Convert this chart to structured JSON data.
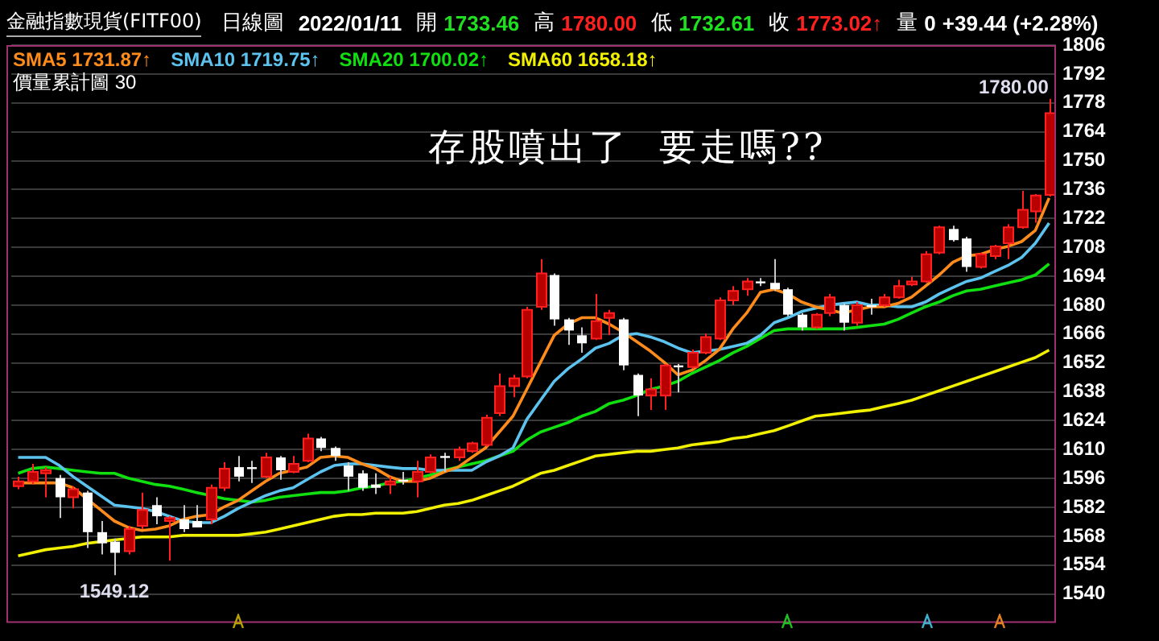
{
  "chart_data": {
    "type": "candlestick",
    "title": "金融指數現貨(FITF00)",
    "subtitle": "日線圖",
    "categories": [
      null,
      null,
      null,
      null,
      null,
      null,
      null,
      null,
      null,
      null,
      null,
      null,
      null,
      null,
      null,
      null,
      null,
      null,
      null,
      null,
      null,
      null,
      null,
      null,
      null,
      null,
      null,
      null,
      null,
      null,
      null,
      null,
      null,
      null,
      null,
      null,
      null,
      null,
      null,
      null,
      null,
      null,
      null,
      null,
      null,
      null,
      null,
      null,
      null,
      null,
      null,
      null,
      null,
      null,
      null,
      null,
      null,
      null,
      null,
      null,
      null,
      null,
      null,
      null,
      null,
      null,
      null,
      null,
      null,
      null,
      null,
      null,
      null,
      null,
      null,
      null
    ],
    "ohlc": [
      [
        1592.3,
        1596.9,
        1590.8,
        1594.6
      ],
      [
        1594.6,
        1603.1,
        1593.1,
        1599.2
      ],
      [
        1598.5,
        1601.5,
        1586.9,
        1600.0
      ],
      [
        1596.2,
        1597.7,
        1576.9,
        1586.9
      ],
      [
        1586.9,
        1592.3,
        1581.5,
        1590.8
      ],
      [
        1589.2,
        1590.0,
        1562.3,
        1570.0
      ],
      [
        1570.0,
        1575.4,
        1559.2,
        1564.6
      ],
      [
        1565.4,
        1566.9,
        1549.12,
        1560.0
      ],
      [
        1560.8,
        1573.1,
        1559.2,
        1571.5
      ],
      [
        1573.1,
        1589.2,
        1571.5,
        1580.8
      ],
      [
        1583.1,
        1586.9,
        1573.8,
        1577.7
      ],
      [
        1575.4,
        1577.7,
        1556.2,
        1576.9
      ],
      [
        1576.2,
        1583.1,
        1570.0,
        1571.5
      ],
      [
        1575.4,
        1583.1,
        1572.3,
        1572.3
      ],
      [
        1576.2,
        1593.1,
        1573.8,
        1591.5
      ],
      [
        1591.5,
        1603.9,
        1590.0,
        1600.8
      ],
      [
        1601.5,
        1606.9,
        1594.6,
        1596.9
      ],
      [
        1601.5,
        1604.6,
        1593.8,
        1601.0
      ],
      [
        1596.9,
        1608.5,
        1596.2,
        1606.2
      ],
      [
        1606.2,
        1606.9,
        1595.4,
        1600.0
      ],
      [
        1599.2,
        1606.9,
        1598.5,
        1603.1
      ],
      [
        1604.6,
        1617.7,
        1603.9,
        1615.4
      ],
      [
        1615.4,
        1616.2,
        1609.2,
        1610.8
      ],
      [
        1610.8,
        1611.5,
        1604.6,
        1606.9
      ],
      [
        1602.3,
        1603.9,
        1590.0,
        1596.9
      ],
      [
        1598.5,
        1600.0,
        1590.0,
        1591.5
      ],
      [
        1593.1,
        1598.5,
        1588.5,
        1591.5
      ],
      [
        1593.1,
        1596.9,
        1588.5,
        1594.6
      ],
      [
        1595.4,
        1599.2,
        1593.1,
        1594.6
      ],
      [
        1594.6,
        1604.6,
        1586.9,
        1599.2
      ],
      [
        1599.2,
        1607.7,
        1598.5,
        1606.2
      ],
      [
        1606.9,
        1608.5,
        1599.2,
        1606.2
      ],
      [
        1606.2,
        1611.5,
        1604.6,
        1610.0
      ],
      [
        1609.2,
        1613.8,
        1608.5,
        1613.1
      ],
      [
        1612.3,
        1626.9,
        1611.5,
        1625.4
      ],
      [
        1627.7,
        1646.9,
        1626.2,
        1640.8
      ],
      [
        1640.8,
        1646.2,
        1635.4,
        1644.6
      ],
      [
        1645.4,
        1679.2,
        1644.6,
        1677.7
      ],
      [
        1679.2,
        1702.3,
        1677.7,
        1695.4
      ],
      [
        1694.6,
        1695.4,
        1670.0,
        1673.1
      ],
      [
        1673.1,
        1673.8,
        1660.8,
        1667.7
      ],
      [
        1665.4,
        1669.2,
        1656.9,
        1661.5
      ],
      [
        1663.8,
        1685.4,
        1663.1,
        1672.3
      ],
      [
        1673.8,
        1677.7,
        1665.4,
        1676.2
      ],
      [
        1673.1,
        1673.8,
        1648.5,
        1650.8
      ],
      [
        1646.2,
        1646.9,
        1626.2,
        1636.2
      ],
      [
        1636.2,
        1644.6,
        1629.2,
        1639.2
      ],
      [
        1636.2,
        1651.5,
        1629.2,
        1650.8
      ],
      [
        1650.8,
        1651.5,
        1637.7,
        1650.0
      ],
      [
        1650.0,
        1658.5,
        1649.2,
        1656.9
      ],
      [
        1656.9,
        1666.2,
        1656.2,
        1664.6
      ],
      [
        1663.8,
        1683.8,
        1663.1,
        1682.3
      ],
      [
        1682.3,
        1689.2,
        1680.0,
        1686.9
      ],
      [
        1687.7,
        1693.1,
        1684.6,
        1691.5
      ],
      [
        1691.5,
        1693.1,
        1689.2,
        1690.8
      ],
      [
        1690.8,
        1702.3,
        1686.9,
        1687.7
      ],
      [
        1687.7,
        1688.5,
        1674.6,
        1675.4
      ],
      [
        1675.4,
        1676.2,
        1667.7,
        1669.2
      ],
      [
        1669.2,
        1676.2,
        1668.5,
        1675.4
      ],
      [
        1676.2,
        1685.4,
        1674.6,
        1683.8
      ],
      [
        1680.0,
        1680.8,
        1667.7,
        1671.5
      ],
      [
        1671.5,
        1681.5,
        1670.0,
        1680.0
      ],
      [
        1680.0,
        1683.1,
        1675.4,
        1679.2
      ],
      [
        1680.0,
        1685.4,
        1679.2,
        1683.8
      ],
      [
        1683.8,
        1692.3,
        1683.1,
        1689.2
      ],
      [
        1690.0,
        1693.8,
        1689.2,
        1691.5
      ],
      [
        1691.5,
        1706.2,
        1690.8,
        1704.6
      ],
      [
        1705.4,
        1718.5,
        1704.6,
        1717.7
      ],
      [
        1716.9,
        1718.5,
        1710.8,
        1711.5
      ],
      [
        1712.3,
        1713.1,
        1696.2,
        1698.5
      ],
      [
        1698.5,
        1705.4,
        1697.7,
        1704.6
      ],
      [
        1703.8,
        1709.2,
        1702.3,
        1708.5
      ],
      [
        1710.0,
        1719.2,
        1702.3,
        1717.7
      ],
      [
        1717.7,
        1735.4,
        1717.0,
        1726.2
      ],
      [
        1725.4,
        1733.8,
        1720.0,
        1733.1
      ],
      [
        1733.46,
        1780.0,
        1732.61,
        1773.02
      ]
    ],
    "series": [
      {
        "type": "line",
        "name": "SMA5 1731.87↑",
        "color": "#ff8c1a",
        "values": [
          1593.9,
          1593.9,
          1593.9,
          1593.9,
          1591.5,
          1586.2,
          1580.8,
          1575.4,
          1572.3,
          1570.8,
          1571.5,
          1573.1,
          1576.2,
          1577.7,
          1578.5,
          1582.3,
          1585.4,
          1590.0,
          1594.6,
          1598.5,
          1600.0,
          1601.5,
          1606.2,
          1606.9,
          1606.2,
          1603.1,
          1600.8,
          1596.9,
          1594.6,
          1594.6,
          1596.2,
          1599.2,
          1601.5,
          1606.2,
          1610.8,
          1618.5,
          1626.2,
          1639.2,
          1652.3,
          1665.4,
          1670.8,
          1673.9,
          1673.9,
          1670.8,
          1666.9,
          1662.3,
          1657.7,
          1652.3,
          1646.2,
          1648.5,
          1653.1,
          1658.5,
          1668.5,
          1676.2,
          1686.2,
          1687.7,
          1685.4,
          1681.5,
          1679.2,
          1677.7,
          1676.2,
          1677.7,
          1679.2,
          1679.2,
          1680.8,
          1683.9,
          1689.2,
          1694.6,
          1700.8,
          1703.9,
          1704.6,
          1706.9,
          1708.5,
          1710.8,
          1716.2,
          1731.9
        ]
      },
      {
        "type": "line",
        "name": "SMA10 1719.75↑",
        "color": "#5cc3ee",
        "values": [
          1606.2,
          1606.2,
          1606.2,
          1602.3,
          1596.9,
          1592.3,
          1587.7,
          1583.1,
          1582.3,
          1581.5,
          1580.0,
          1577.7,
          1575.4,
          1574.6,
          1574.6,
          1577.7,
          1581.5,
          1584.6,
          1587.7,
          1590.0,
          1591.5,
          1595.4,
          1599.2,
          1602.3,
          1603.1,
          1603.1,
          1602.3,
          1601.5,
          1600.8,
          1600.8,
          1600.0,
          1600.0,
          1600.0,
          1600.0,
          1603.9,
          1606.9,
          1610.8,
          1624.6,
          1633.9,
          1643.1,
          1649.2,
          1653.9,
          1659.2,
          1661.5,
          1665.4,
          1666.2,
          1664.6,
          1662.3,
          1659.2,
          1656.9,
          1657.7,
          1658.5,
          1660.0,
          1661.5,
          1665.4,
          1671.5,
          1673.9,
          1676.9,
          1678.5,
          1680.0,
          1680.8,
          1681.5,
          1680.0,
          1680.0,
          1679.2,
          1679.2,
          1681.5,
          1685.4,
          1688.5,
          1691.5,
          1693.1,
          1696.2,
          1699.2,
          1703.1,
          1710.0,
          1719.8
        ]
      },
      {
        "type": "line",
        "name": "SMA20 1700.02↑",
        "color": "#10e010",
        "values": [
          1598.5,
          1600.8,
          1601.5,
          1600.8,
          1600.0,
          1599.2,
          1598.5,
          1598.5,
          1596.2,
          1594.6,
          1593.1,
          1592.3,
          1590.8,
          1589.2,
          1587.7,
          1586.2,
          1585.4,
          1584.6,
          1585.4,
          1586.9,
          1587.7,
          1588.5,
          1589.2,
          1589.2,
          1590.0,
          1591.5,
          1592.3,
          1593.9,
          1594.6,
          1596.2,
          1597.7,
          1600.0,
          1601.5,
          1603.1,
          1604.6,
          1606.9,
          1609.2,
          1614.6,
          1618.5,
          1620.8,
          1623.1,
          1626.2,
          1628.5,
          1632.3,
          1633.9,
          1636.2,
          1639.2,
          1640.8,
          1643.1,
          1646.9,
          1650.0,
          1653.1,
          1656.9,
          1660.0,
          1663.9,
          1667.7,
          1668.5,
          1668.5,
          1668.5,
          1668.5,
          1668.5,
          1669.2,
          1670.0,
          1670.8,
          1673.1,
          1676.2,
          1679.2,
          1681.5,
          1684.6,
          1686.9,
          1687.7,
          1689.2,
          1690.8,
          1692.3,
          1694.6,
          1700.0
        ]
      },
      {
        "type": "line",
        "name": "SMA60 1658.18↑",
        "color": "#f0f000",
        "values": [
          1558.5,
          1560.0,
          1561.5,
          1562.3,
          1563.1,
          1564.6,
          1565.4,
          1566.2,
          1566.9,
          1567.7,
          1567.7,
          1567.7,
          1568.5,
          1568.5,
          1568.5,
          1568.5,
          1568.5,
          1569.2,
          1570.0,
          1571.5,
          1573.1,
          1574.6,
          1576.2,
          1577.7,
          1578.5,
          1578.5,
          1579.2,
          1579.2,
          1579.2,
          1580.0,
          1581.5,
          1583.1,
          1583.9,
          1585.4,
          1587.7,
          1590.0,
          1592.3,
          1595.4,
          1598.5,
          1600.0,
          1602.3,
          1604.6,
          1606.9,
          1607.7,
          1608.5,
          1609.2,
          1609.2,
          1610.0,
          1610.8,
          1612.3,
          1613.1,
          1613.8,
          1615.4,
          1616.2,
          1617.7,
          1619.2,
          1621.5,
          1623.9,
          1626.2,
          1626.9,
          1627.7,
          1628.5,
          1629.2,
          1630.8,
          1632.3,
          1633.9,
          1636.2,
          1638.5,
          1640.8,
          1643.1,
          1645.4,
          1647.7,
          1650.0,
          1652.3,
          1654.6,
          1658.2
        ]
      }
    ],
    "ylim": [
      1526,
      1806
    ],
    "yticks": [
      1540,
      1554,
      1568,
      1582,
      1596,
      1610,
      1624,
      1638,
      1652,
      1666,
      1680,
      1694,
      1708,
      1722,
      1736,
      1750,
      1764,
      1778,
      1792,
      1806
    ],
    "grid": "y",
    "legend": "top left",
    "tick_labels": "y",
    "marker": "none",
    "annotations": [
      "2022/01/11",
      "開",
      "1733.46",
      "高",
      "1780.00",
      "低",
      "1732.61",
      "收",
      "1773.02↑",
      "量",
      "0",
      "+39.44 (+2.28%)",
      "價量累計圖 30",
      "存股噴出了  要走嗎??",
      "1780.00",
      {
        "text": "1549.12",
        "y": 1549.12
      }
    ]
  }
}
